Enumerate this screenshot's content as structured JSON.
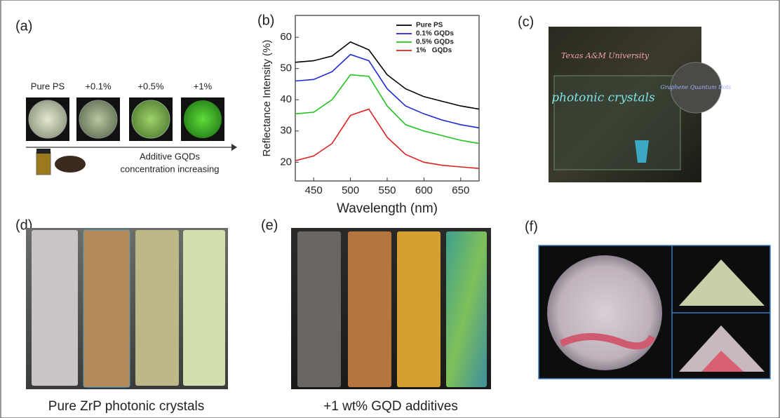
{
  "panels": {
    "a": {
      "label": "(a)",
      "samples": [
        "Pure PS",
        "+0.1%",
        "+0.5%",
        "+1%"
      ],
      "caption_lines": [
        "Additive GQDs",
        "concentration increasing"
      ]
    },
    "b": {
      "label": "(b)"
    },
    "c": {
      "label": "(c)",
      "photo_text": [
        "Texas A&M University",
        "photonic crystals",
        "Graphene Quantum Dots"
      ]
    },
    "d": {
      "label": "(d)",
      "caption": "Pure ZrP photonic crystals"
    },
    "e": {
      "label": "(e)",
      "caption": "+1 wt% GQD additives"
    },
    "f": {
      "label": "(f)"
    }
  },
  "chart_data": {
    "type": "line",
    "x_label": "Wavelength (nm)",
    "y_label": "Reflectance Intensity (%)",
    "x": [
      425,
      450,
      475,
      500,
      525,
      550,
      575,
      600,
      625,
      650,
      675
    ],
    "series": [
      {
        "name": "Pure PS",
        "color": "#000000",
        "values": [
          52,
          52.5,
          54,
          58.5,
          56,
          48,
          43.5,
          41,
          39.5,
          38,
          37
        ]
      },
      {
        "name": "0.1% GQDs",
        "color": "#1f2ad0",
        "values": [
          46,
          46.5,
          49,
          54.5,
          52.5,
          43.5,
          38,
          35.5,
          33.5,
          32,
          31
        ]
      },
      {
        "name": "0.5% GQDs",
        "color": "#22c422",
        "values": [
          35.5,
          36,
          40,
          48,
          47.5,
          38,
          32,
          30,
          28.5,
          27,
          26
        ]
      },
      {
        "name": "1%   GQDs",
        "color": "#e02020",
        "values": [
          20.5,
          22,
          26,
          35,
          37,
          28,
          22.5,
          20,
          19,
          18.5,
          18
        ]
      }
    ],
    "xlim": [
      425,
      675
    ],
    "xticks": [
      450,
      500,
      550,
      600,
      650
    ],
    "ylim": [
      14,
      67
    ],
    "yticks": [
      20,
      30,
      40,
      50,
      60
    ],
    "grid": false,
    "legend": "upper right"
  }
}
